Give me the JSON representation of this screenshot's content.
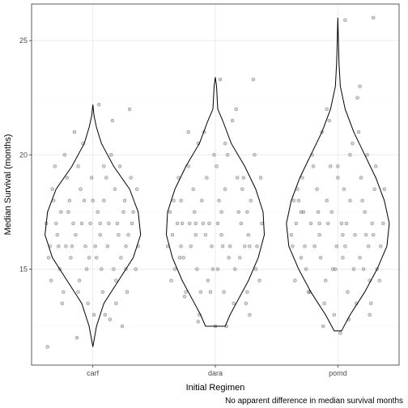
{
  "chart_data": {
    "type": "violin",
    "overlay": "jittered-points",
    "xlabel": "Initial Regimen",
    "ylabel": "Median Survival (months)",
    "caption": "No apparent difference in median survival months",
    "categories": [
      "carf",
      "dara",
      "pomd"
    ],
    "ylim": [
      10.8,
      26.6
    ],
    "yticks": [
      15,
      20,
      25
    ],
    "ytick_labels": [
      "15",
      "20",
      "25"
    ],
    "grid": true,
    "legend": "none",
    "colors": {
      "point_fill": "#808080",
      "point_stroke": "#333333",
      "violin_stroke": "#000000",
      "grid_major": "#ebebeb",
      "grid_minor": "#f5f5f5",
      "panel_border": "#333333"
    },
    "violins": [
      {
        "category": "carf",
        "y": [
          11.6,
          12.5,
          13.5,
          14.5,
          15.5,
          16.5,
          17.5,
          18.5,
          19.5,
          20.5,
          21.2,
          21.7,
          22.2
        ],
        "halfwidth": [
          0.0,
          0.03,
          0.09,
          0.21,
          0.33,
          0.39,
          0.37,
          0.3,
          0.17,
          0.07,
          0.03,
          0.01,
          0.0
        ]
      },
      {
        "category": "dara",
        "y": [
          12.5,
          13.0,
          13.5,
          14.5,
          15.5,
          16.5,
          17.5,
          18.5,
          19.5,
          20.5,
          21.5,
          22.0,
          23.0,
          23.4
        ],
        "halfwidth": [
          0.08,
          0.12,
          0.17,
          0.27,
          0.35,
          0.4,
          0.39,
          0.33,
          0.24,
          0.13,
          0.06,
          0.02,
          0.01,
          0.0
        ]
      },
      {
        "category": "pomd",
        "y": [
          12.3,
          13.0,
          14.0,
          15.0,
          16.0,
          17.0,
          18.0,
          19.0,
          20.0,
          21.0,
          22.0,
          23.0,
          24.0,
          25.0,
          26.0
        ],
        "halfwidth": [
          0.03,
          0.1,
          0.22,
          0.32,
          0.4,
          0.42,
          0.38,
          0.31,
          0.22,
          0.13,
          0.06,
          0.02,
          0.01,
          0.005,
          0.0
        ]
      }
    ],
    "points": {
      "carf": [
        [
          -0.17,
          16.0
        ],
        [
          0.05,
          22.2
        ],
        [
          0.3,
          22.0
        ],
        [
          -0.29,
          16.5
        ],
        [
          0.13,
          17.0
        ],
        [
          -0.05,
          15.0
        ],
        [
          0.22,
          19.5
        ],
        [
          -0.36,
          15.5
        ],
        [
          0.09,
          18.0
        ],
        [
          -0.12,
          14.0
        ],
        [
          0.27,
          16.0
        ],
        [
          -0.21,
          19.0
        ],
        [
          0.01,
          13.0
        ],
        [
          0.33,
          17.5
        ],
        [
          -0.08,
          20.5
        ],
        [
          0.17,
          15.0
        ],
        [
          -0.32,
          18.0
        ],
        [
          0.06,
          16.5
        ],
        [
          -0.25,
          13.5
        ],
        [
          0.19,
          14.5
        ],
        [
          -0.15,
          21.0
        ],
        [
          0.36,
          18.5
        ],
        [
          -0.02,
          17.0
        ],
        [
          0.24,
          12.5
        ],
        [
          -0.38,
          17.0
        ],
        [
          0.11,
          19.0
        ],
        [
          -0.27,
          15.0
        ],
        [
          0.03,
          15.5
        ],
        [
          0.29,
          16.5
        ],
        [
          -0.1,
          18.5
        ],
        [
          -0.2,
          17.5
        ],
        [
          0.15,
          20.0
        ],
        [
          -0.34,
          14.5
        ],
        [
          0.08,
          14.0
        ],
        [
          0.26,
          18.0
        ],
        [
          -0.06,
          16.0
        ],
        [
          -0.23,
          20.0
        ],
        [
          0.2,
          17.0
        ],
        [
          -0.13,
          12.0
        ],
        [
          0.35,
          15.0
        ],
        [
          -0.31,
          19.5
        ],
        [
          0.0,
          18.0
        ],
        [
          0.12,
          16.0
        ],
        [
          -0.18,
          15.5
        ],
        [
          0.31,
          19.0
        ],
        [
          -0.04,
          13.5
        ],
        [
          -0.28,
          16.0
        ],
        [
          0.23,
          15.5
        ],
        [
          -0.09,
          17.0
        ],
        [
          0.16,
          21.5
        ],
        [
          -0.37,
          11.6
        ],
        [
          0.04,
          17.5
        ],
        [
          0.28,
          14.0
        ],
        [
          -0.19,
          18.0
        ],
        [
          0.1,
          13.0
        ],
        [
          -0.01,
          19.0
        ],
        [
          -0.3,
          17.0
        ],
        [
          0.21,
          16.5
        ],
        [
          -0.14,
          16.5
        ],
        [
          0.37,
          16.0
        ],
        [
          -0.24,
          14.0
        ],
        [
          0.07,
          15.0
        ],
        [
          -0.07,
          18.0
        ],
        [
          0.18,
          18.5
        ],
        [
          -0.33,
          18.5
        ],
        [
          0.02,
          16.0
        ],
        [
          0.25,
          17.5
        ],
        [
          -0.16,
          17.0
        ],
        [
          0.14,
          12.8
        ],
        [
          -0.26,
          17.5
        ],
        [
          0.32,
          17.0
        ],
        [
          -0.03,
          15.5
        ],
        [
          -0.22,
          16.0
        ],
        [
          0.09,
          19.5
        ],
        [
          -0.11,
          14.5
        ],
        [
          0.27,
          15.0
        ],
        [
          -0.35,
          16.0
        ],
        [
          0.06,
          17.0
        ],
        [
          0.19,
          13.5
        ],
        [
          -0.12,
          19.5
        ]
      ],
      "dara": [
        [
          -0.16,
          17.0
        ],
        [
          0.04,
          23.3
        ],
        [
          0.31,
          23.3
        ],
        [
          -0.28,
          18.0
        ],
        [
          0.12,
          16.0
        ],
        [
          -0.06,
          14.5
        ],
        [
          0.23,
          19.0
        ],
        [
          -0.35,
          16.5
        ],
        [
          0.08,
          18.5
        ],
        [
          -0.13,
          13.0
        ],
        [
          0.26,
          17.5
        ],
        [
          -0.22,
          19.5
        ],
        [
          0.0,
          12.5
        ],
        [
          0.34,
          16.0
        ],
        [
          -0.09,
          21.0
        ],
        [
          0.16,
          15.0
        ],
        [
          -0.31,
          17.0
        ],
        [
          0.05,
          17.5
        ],
        [
          -0.24,
          14.0
        ],
        [
          0.2,
          15.5
        ],
        [
          -0.14,
          20.5
        ],
        [
          0.37,
          19.0
        ],
        [
          -0.03,
          16.0
        ],
        [
          0.25,
          13.5
        ],
        [
          -0.39,
          16.0
        ],
        [
          0.1,
          20.0
        ],
        [
          -0.26,
          15.5
        ],
        [
          0.02,
          15.0
        ],
        [
          0.29,
          18.0
        ],
        [
          -0.11,
          18.0
        ],
        [
          -0.2,
          16.0
        ],
        [
          0.14,
          21.5
        ],
        [
          -0.33,
          15.0
        ],
        [
          0.07,
          14.0
        ],
        [
          0.27,
          16.5
        ],
        [
          -0.05,
          17.0
        ],
        [
          -0.22,
          21.0
        ],
        [
          0.21,
          17.0
        ],
        [
          -0.14,
          12.7
        ],
        [
          0.36,
          14.5
        ],
        [
          -0.3,
          19.0
        ],
        [
          0.01,
          19.5
        ],
        [
          0.11,
          15.5
        ],
        [
          -0.17,
          17.5
        ],
        [
          0.32,
          20.0
        ],
        [
          -0.04,
          14.0
        ],
        [
          -0.28,
          16.0
        ],
        [
          0.24,
          16.0
        ],
        [
          -0.08,
          16.5
        ],
        [
          0.17,
          22.0
        ],
        [
          -0.37,
          17.5
        ],
        [
          0.03,
          18.0
        ],
        [
          0.28,
          13.0
        ],
        [
          -0.18,
          18.5
        ],
        [
          0.09,
          12.5
        ],
        [
          -0.01,
          20.0
        ],
        [
          -0.29,
          15.5
        ],
        [
          0.22,
          18.5
        ],
        [
          -0.15,
          15.0
        ],
        [
          0.38,
          17.0
        ],
        [
          -0.25,
          13.8
        ],
        [
          0.06,
          16.0
        ],
        [
          -0.07,
          19.0
        ],
        [
          0.19,
          17.5
        ],
        [
          -0.34,
          18.0
        ],
        [
          0.02,
          17.0
        ],
        [
          0.26,
          14.0
        ],
        [
          -0.16,
          16.5
        ],
        [
          0.15,
          13.5
        ],
        [
          -0.27,
          17.0
        ],
        [
          0.33,
          15.0
        ],
        [
          -0.02,
          15.0
        ],
        [
          -0.21,
          17.0
        ],
        [
          0.08,
          20.5
        ],
        [
          -0.12,
          14.0
        ],
        [
          0.28,
          16.0
        ],
        [
          -0.36,
          14.5
        ],
        [
          0.05,
          16.5
        ],
        [
          0.18,
          19.0
        ],
        [
          -0.1,
          17.0
        ]
      ],
      "pomd": [
        [
          -0.15,
          17.0
        ],
        [
          0.06,
          25.9
        ],
        [
          0.29,
          26.0
        ],
        [
          -0.3,
          17.5
        ],
        [
          0.14,
          16.5
        ],
        [
          -0.04,
          15.0
        ],
        [
          0.24,
          20.0
        ],
        [
          -0.34,
          17.0
        ],
        [
          0.1,
          18.0
        ],
        [
          -0.11,
          13.5
        ],
        [
          0.28,
          17.0
        ],
        [
          -0.2,
          19.5
        ],
        [
          0.02,
          12.2
        ],
        [
          0.35,
          16.0
        ],
        [
          -0.07,
          21.5
        ],
        [
          0.18,
          15.5
        ],
        [
          -0.32,
          18.0
        ],
        [
          0.07,
          17.0
        ],
        [
          -0.23,
          14.0
        ],
        [
          0.21,
          15.0
        ],
        [
          -0.13,
          21.0
        ],
        [
          0.38,
          18.5
        ],
        [
          -0.01,
          16.0
        ],
        [
          0.26,
          13.0
        ],
        [
          -0.38,
          16.5
        ],
        [
          0.12,
          20.5
        ],
        [
          -0.26,
          15.0
        ],
        [
          0.04,
          15.5
        ],
        [
          0.3,
          18.5
        ],
        [
          -0.09,
          18.0
        ],
        [
          -0.19,
          16.0
        ],
        [
          0.16,
          22.5
        ],
        [
          -0.35,
          14.5
        ],
        [
          0.08,
          14.0
        ],
        [
          0.25,
          16.0
        ],
        [
          -0.05,
          17.5
        ],
        [
          -0.21,
          20.0
        ],
        [
          0.22,
          17.5
        ],
        [
          -0.12,
          12.5
        ],
        [
          0.34,
          14.5
        ],
        [
          -0.29,
          19.0
        ],
        [
          0.0,
          19.0
        ],
        [
          0.13,
          15.0
        ],
        [
          -0.16,
          17.5
        ],
        [
          0.31,
          19.5
        ],
        [
          -0.03,
          13.0
        ],
        [
          -0.27,
          16.0
        ],
        [
          0.23,
          16.5
        ],
        [
          -0.08,
          17.0
        ],
        [
          0.18,
          23.0
        ],
        [
          -0.36,
          18.0
        ],
        [
          0.05,
          18.5
        ],
        [
          0.27,
          13.5
        ],
        [
          -0.17,
          18.5
        ],
        [
          0.09,
          12.8
        ],
        [
          0.0,
          19.5
        ],
        [
          -0.3,
          15.5
        ],
        [
          0.2,
          18.0
        ],
        [
          -0.14,
          15.5
        ],
        [
          0.37,
          17.0
        ],
        [
          -0.24,
          14.0
        ],
        [
          0.06,
          16.0
        ],
        [
          -0.06,
          19.5
        ],
        [
          0.17,
          21.0
        ],
        [
          -0.33,
          18.5
        ],
        [
          0.03,
          17.0
        ],
        [
          0.26,
          14.5
        ],
        [
          -0.15,
          16.5
        ],
        [
          0.15,
          13.5
        ],
        [
          -0.28,
          17.5
        ],
        [
          0.32,
          15.0
        ],
        [
          -0.02,
          15.0
        ],
        [
          -0.22,
          17.0
        ],
        [
          0.1,
          20.0
        ],
        [
          -0.1,
          14.5
        ],
        [
          0.29,
          16.5
        ],
        [
          -0.37,
          16.0
        ],
        [
          0.04,
          16.5
        ],
        [
          0.19,
          19.0
        ],
        [
          -0.09,
          22.0
        ]
      ]
    }
  }
}
